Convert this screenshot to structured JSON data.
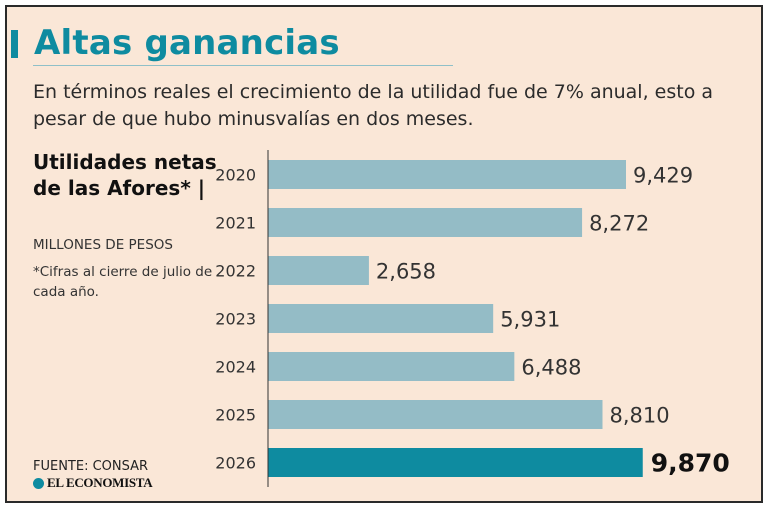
{
  "header": {
    "title": "Altas ganancias",
    "subtitle": "En términos reales el crecimiento de la utilidad fue de 7% anual, esto a pesar de que hubo minusvalías en dos meses."
  },
  "side": {
    "chart_title": "Utilidades netas de las Afores* |",
    "units": "MILLONES DE PESOS",
    "note": "*Cifras al cierre de julio de cada año.",
    "source": "FUENTE: CONSAR",
    "brand": "EL ECONOMISTA"
  },
  "colors": {
    "background": "#fae7d7",
    "accent": "#0e8ba0",
    "bar": "#94bcc6",
    "bar_highlight": "#0e8ba0"
  },
  "chart_data": {
    "type": "bar",
    "orientation": "horizontal",
    "categories": [
      "2020",
      "2021",
      "2022",
      "2023",
      "2024",
      "2025",
      "2026"
    ],
    "values": [
      9429,
      8272,
      2658,
      5931,
      6488,
      8810,
      9870
    ],
    "value_labels": [
      "9,429",
      "8,272",
      "2,658",
      "5,931",
      "6,488",
      "8,810",
      "9,870"
    ],
    "highlight_index": 6,
    "xlim": [
      0,
      10000
    ],
    "grid": false,
    "legend": "none"
  }
}
